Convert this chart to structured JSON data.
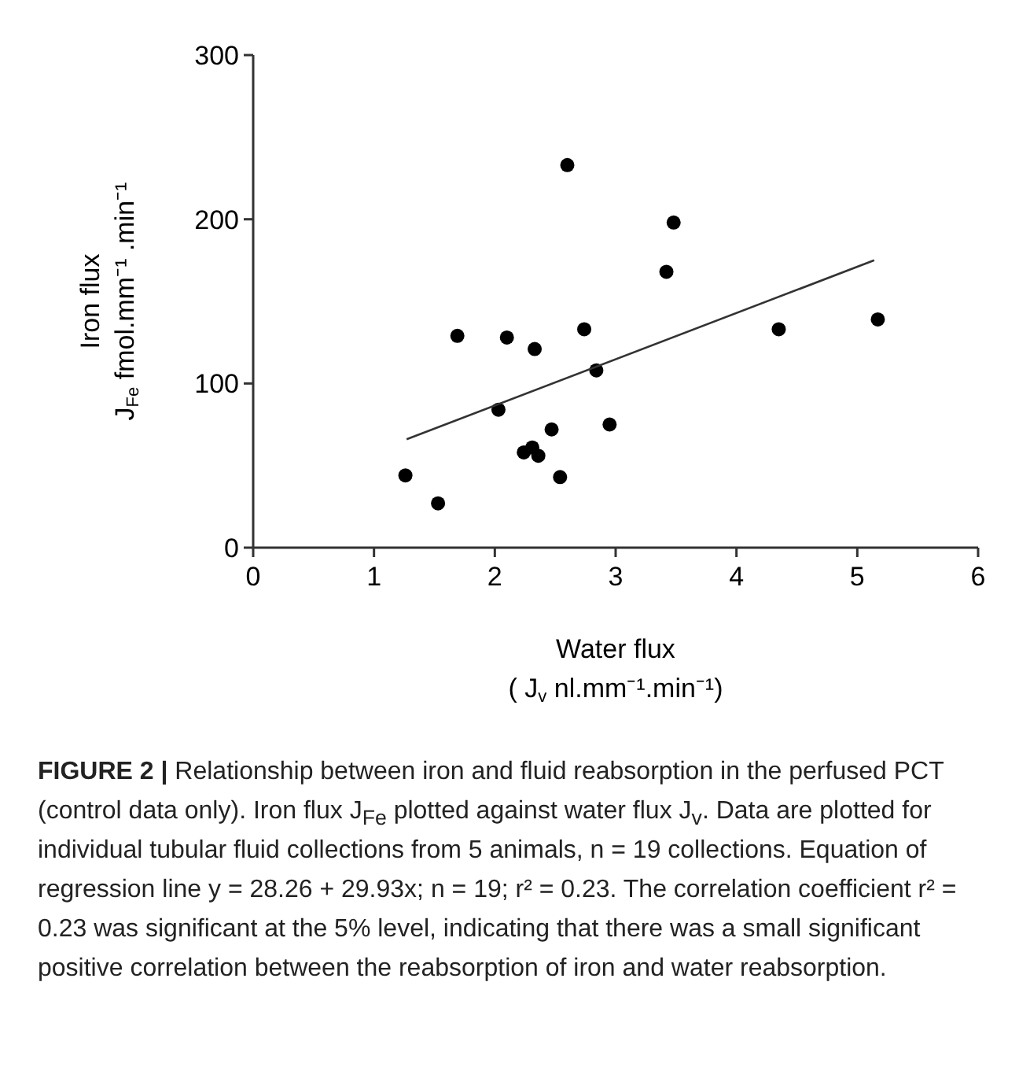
{
  "chart_data": {
    "type": "scatter",
    "xlabel": "Water flux\n( J$_{v}$ nl.mm⁻¹.min⁻¹)",
    "ylabel": "Iron flux\nJ$_{Fe}$ fmol.mm⁻¹ .min⁻¹",
    "xlim": [
      0,
      6
    ],
    "xticks": [
      0,
      1,
      2,
      3,
      4,
      5,
      6
    ],
    "ylim": [
      0,
      300
    ],
    "yticks": [
      0,
      100,
      200,
      300
    ],
    "grid": false,
    "marker": "circle",
    "series": [
      {
        "color": "#000000",
        "x": [
          1.26,
          1.53,
          1.69,
          2.03,
          2.1,
          2.33,
          2.24,
          2.31,
          2.36,
          2.47,
          2.54,
          2.6,
          2.74,
          2.84,
          2.95,
          3.42,
          3.48,
          4.35,
          5.17
        ],
        "values": [
          44,
          27,
          129,
          84,
          128,
          121,
          58,
          61,
          56,
          72,
          43,
          233,
          133,
          108,
          75,
          168,
          198,
          133,
          139
        ]
      },
      {
        "type": "line",
        "color": "#333333",
        "x": [
          1.27,
          5.14
        ],
        "values": [
          66,
          175
        ],
        "marker": "none",
        "line_style": "solid"
      }
    ],
    "annotations": [
      "FIGURE 2 |",
      "Relationship between iron and fluid reabsorption in the perfused PCT (control data only). Iron flux J$_{Fe}$ plotted against water flux J$_{v}$. Data are plotted for individual tubular fluid collections from 5 animals, n = 19 collections. Equation of regression line y = 28.26 + 29.93x; n = 19; r² = 0.23. The correlation coefficient r² = 0.23 was significant at the 5% level, indicating that there was a small significant positive correlation between the reabsorption of iron and water reabsorption."
    ]
  }
}
